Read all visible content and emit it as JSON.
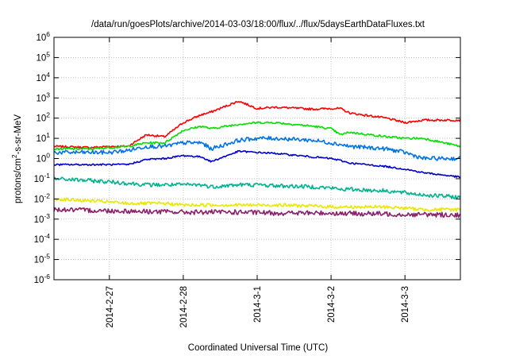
{
  "chart_data": {
    "type": "line",
    "title": "/data/run/goesPlots/archive/2014-03-03/18:00/flux/../flux/5daysEarthDataFluxes.txt",
    "xlabel": "Coordinated Universal Time (UTC)",
    "ylabel_parts": {
      "prefix": "protons/cm",
      "sup": "2",
      "suffix": "-s-sr-MeV"
    },
    "y_scale": "log",
    "ylim": [
      1e-06,
      1000000.0
    ],
    "y_ticks": [
      {
        "exp": -6,
        "label_base": "10",
        "label_exp": "-6"
      },
      {
        "exp": -5,
        "label_base": "10",
        "label_exp": "-5"
      },
      {
        "exp": -4,
        "label_base": "10",
        "label_exp": "-4"
      },
      {
        "exp": -3,
        "label_base": "10",
        "label_exp": "-3"
      },
      {
        "exp": -2,
        "label_base": "10",
        "label_exp": "-2"
      },
      {
        "exp": -1,
        "label_base": "10",
        "label_exp": "-1"
      },
      {
        "exp": 0,
        "label_base": "10",
        "label_exp": "0"
      },
      {
        "exp": 1,
        "label_base": "10",
        "label_exp": "1"
      },
      {
        "exp": 2,
        "label_base": "10",
        "label_exp": "2"
      },
      {
        "exp": 3,
        "label_base": "10",
        "label_exp": "3"
      },
      {
        "exp": 4,
        "label_base": "10",
        "label_exp": "4"
      },
      {
        "exp": 5,
        "label_base": "10",
        "label_exp": "5"
      },
      {
        "exp": 6,
        "label_base": "10",
        "label_exp": "6"
      }
    ],
    "x_start": "2014-02-26 06:00",
    "x_end": "2014-03-03 18:00",
    "x_ticks": [
      {
        "at": "2014-02-27 00:00",
        "label": "2014-2-27"
      },
      {
        "at": "2014-02-28 00:00",
        "label": "2014-2-28"
      },
      {
        "at": "2014-03-01 00:00",
        "label": "2014-3-1"
      },
      {
        "at": "2014-03-02 00:00",
        "label": "2014-3-2"
      },
      {
        "at": "2014-03-03 00:00",
        "label": "2014-3-3"
      }
    ],
    "grid": true,
    "legend": "none",
    "x": [
      "2014-02-26 06:00",
      "2014-02-26 18:00",
      "2014-02-27 00:00",
      "2014-02-27 06:00",
      "2014-02-27 12:00",
      "2014-02-27 18:00",
      "2014-02-28 00:00",
      "2014-02-28 06:00",
      "2014-02-28 09:00",
      "2014-02-28 18:00",
      "2014-03-01 00:00",
      "2014-03-01 06:00",
      "2014-03-01 18:00",
      "2014-03-02 00:00",
      "2014-03-02 03:00",
      "2014-03-02 06:00",
      "2014-03-02 18:00",
      "2014-03-03 00:00",
      "2014-03-03 06:00",
      "2014-03-03 18:00"
    ],
    "series": [
      {
        "color": "#ff0000",
        "noise": 0.05,
        "values": [
          4,
          3.5,
          4,
          4,
          15,
          12,
          60,
          150,
          200,
          700,
          300,
          350,
          280,
          300,
          300,
          180,
          100,
          60,
          80,
          80
        ]
      },
      {
        "color": "#00e000",
        "noise": 0.05,
        "values": [
          3,
          3,
          3.5,
          4,
          6,
          6,
          25,
          40,
          30,
          50,
          60,
          60,
          40,
          30,
          15,
          20,
          12,
          10,
          10,
          4
        ]
      },
      {
        "color": "#0073e6",
        "noise": 0.1,
        "values": [
          2,
          2,
          2,
          2.5,
          4,
          4,
          6,
          6,
          3,
          8,
          10,
          10,
          8,
          6,
          5,
          4,
          3,
          2,
          1,
          1
        ]
      },
      {
        "color": "#0000c8",
        "noise": 0.04,
        "values": [
          0.5,
          0.5,
          0.5,
          0.5,
          0.9,
          1,
          1.4,
          1.2,
          0.7,
          2.3,
          2,
          1.8,
          1.2,
          1,
          0.8,
          0.6,
          0.4,
          0.3,
          0.2,
          0.12
        ]
      },
      {
        "color": "#00b38f",
        "noise": 0.1,
        "values": [
          0.1,
          0.08,
          0.07,
          0.06,
          0.05,
          0.05,
          0.05,
          0.05,
          0.04,
          0.05,
          0.05,
          0.045,
          0.04,
          0.035,
          0.03,
          0.03,
          0.025,
          0.02,
          0.016,
          0.012
        ]
      },
      {
        "color": "#e8e800",
        "noise": 0.08,
        "values": [
          0.01,
          0.008,
          0.007,
          0.006,
          0.006,
          0.006,
          0.005,
          0.005,
          0.005,
          0.005,
          0.005,
          0.005,
          0.0045,
          0.004,
          0.004,
          0.004,
          0.004,
          0.0035,
          0.003,
          0.003
        ]
      },
      {
        "color": "#8b1f6b",
        "noise": 0.12,
        "values": [
          0.003,
          0.0027,
          0.0026,
          0.0025,
          0.0024,
          0.0023,
          0.0022,
          0.0022,
          0.0022,
          0.0022,
          0.0021,
          0.002,
          0.002,
          0.002,
          0.0019,
          0.0019,
          0.0018,
          0.0017,
          0.0017,
          0.0016
        ]
      }
    ]
  }
}
